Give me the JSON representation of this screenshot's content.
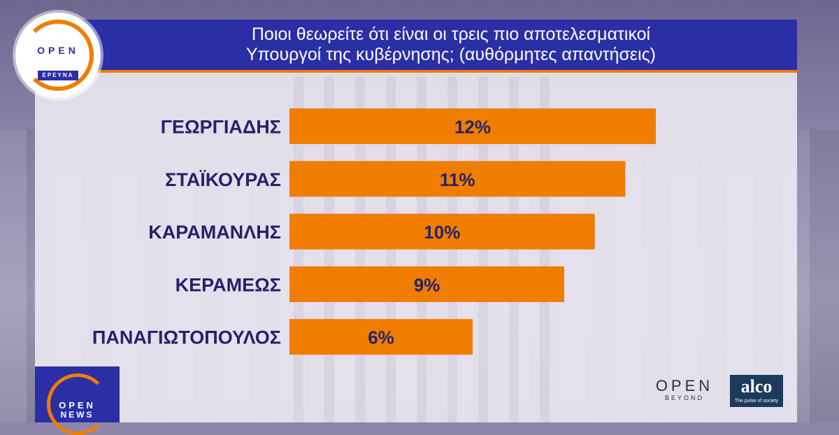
{
  "header": {
    "title_line1": "Ποιοι θεωρείτε ότι είναι οι τρεις πιο αποτελεσματικοί",
    "title_line2": "Υπουργοί της κυβέρνησης; (αυθόρμητες απαντήσεις)"
  },
  "branding": {
    "top_logo_open": "OPEN",
    "top_logo_sub": "ΕΡΕΥΝΑ",
    "bottom_logo_open": "OPEN",
    "bottom_logo_news": "NEWS",
    "beyond_open": "OPEN",
    "beyond_sub": "BEYOND",
    "alco_name": "alco",
    "alco_tagline": "The pulse of society"
  },
  "colors": {
    "bar": "#f07d00",
    "title_bg": "#2b2fa6",
    "label_text": "#25226a"
  },
  "chart_data": {
    "type": "bar",
    "orientation": "horizontal",
    "title": "Ποιοι θεωρείτε ότι είναι οι τρεις πιο αποτελεσματικοί Υπουργοί της κυβέρνησης; (αυθόρμητες απαντήσεις)",
    "categories": [
      "ΓΕΩΡΓΙΑΔΗΣ",
      "ΣΤΑΪΚΟΥΡΑΣ",
      "ΚΑΡΑΜΑΝΛΗΣ",
      "ΚΕΡΑΜΕΩΣ",
      "ΠΑΝΑΓΙΩΤΟΠΟΥΛΟΣ"
    ],
    "values": [
      12,
      11,
      10,
      9,
      6
    ],
    "value_labels": [
      "12%",
      "11%",
      "10%",
      "9%",
      "6%"
    ],
    "unit": "%",
    "xlim": [
      0,
      12
    ],
    "grid": false,
    "legend": "none"
  }
}
